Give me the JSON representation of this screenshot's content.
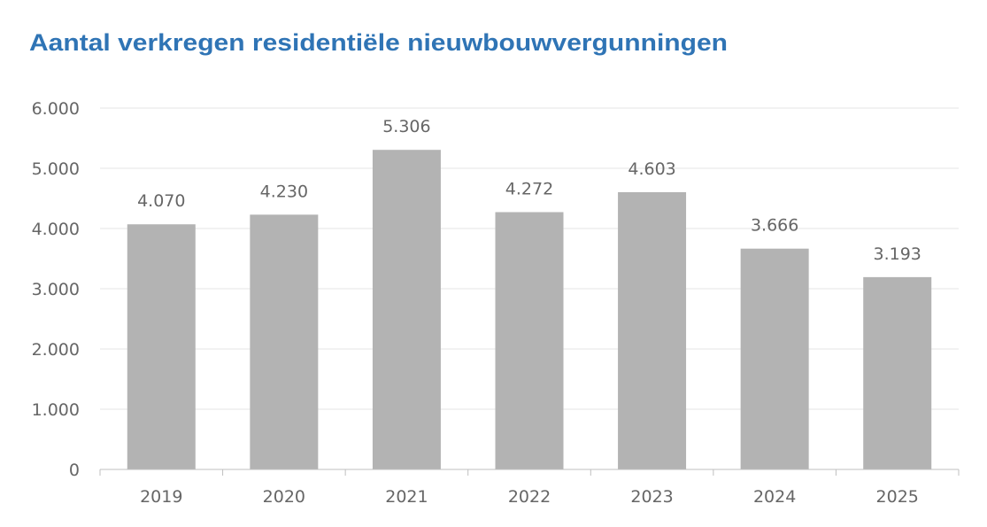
{
  "chart_data": {
    "type": "bar",
    "title": "Aantal verkregen residentiële nieuwbouwvergunningen",
    "xlabel": "",
    "ylabel": "",
    "categories": [
      "2019",
      "2020",
      "2021",
      "2022",
      "2023",
      "2024",
      "2025"
    ],
    "values": [
      4070,
      4230,
      5306,
      4272,
      4603,
      3666,
      3193
    ],
    "value_labels": [
      "4.070",
      "4.230",
      "5.306",
      "4.272",
      "4.603",
      "3.666",
      "3.193"
    ],
    "ylim": [
      0,
      6000
    ],
    "yticks": [
      0,
      1000,
      2000,
      3000,
      4000,
      5000,
      6000
    ],
    "ytick_labels": [
      "0",
      "1.000",
      "2.000",
      "3.000",
      "4.000",
      "5.000",
      "6.000"
    ],
    "grid": true,
    "legend": "none",
    "colors": {
      "bar": "#b3b3b3",
      "title": "#2f74b5",
      "grid": "#e6e6e6",
      "axis": "#bfbfbf",
      "text": "#666666"
    }
  }
}
